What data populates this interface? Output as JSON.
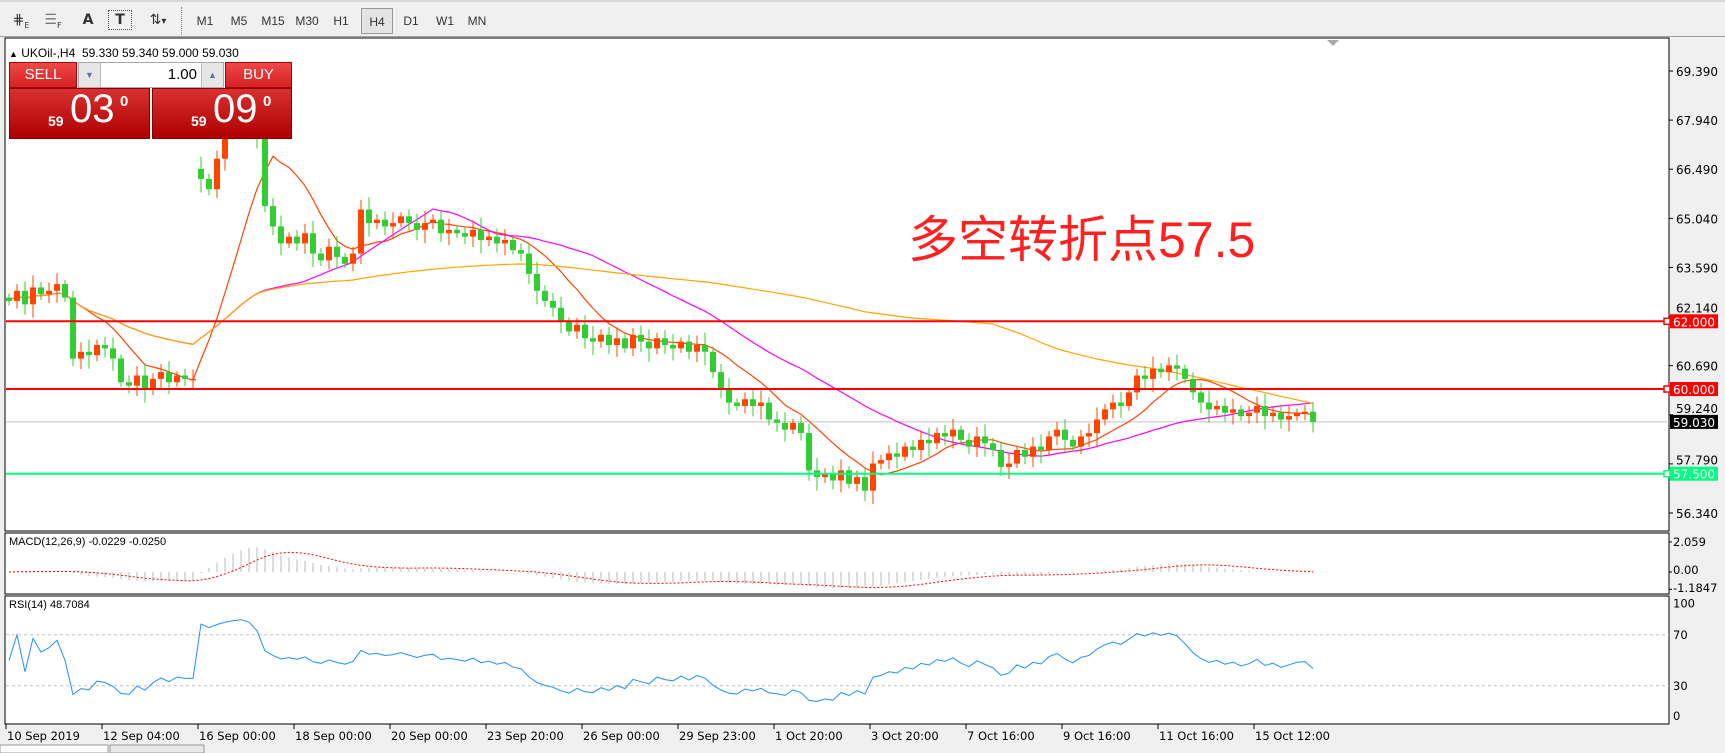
{
  "toolbar": {
    "tools": [
      {
        "icon": "fibonacci-expansion-icon",
        "label": "E"
      },
      {
        "icon": "fibonacci-fan-icon",
        "label": "F"
      },
      {
        "icon": "text-icon",
        "label": "A"
      },
      {
        "icon": "text-label-icon",
        "label": "T"
      },
      {
        "icon": "arrows-dropdown-icon",
        "label": "▾"
      }
    ],
    "timeframes": [
      "M1",
      "M5",
      "M15",
      "M30",
      "H1",
      "H4",
      "D1",
      "W1",
      "MN"
    ],
    "selected": "H4"
  },
  "chart": {
    "symbol": "UKOil-,H4",
    "ohlc": "59.330 59.340 59.000 59.030",
    "annotation": "多空转折点57.5",
    "price_axis": [
      "69.390",
      "67.940",
      "66.490",
      "65.040",
      "63.590",
      "62.140",
      "60.690",
      "59.240",
      "57.790",
      "56.340"
    ],
    "hlines": [
      {
        "label": "62.000",
        "value": 62.0,
        "color": "#ff0000"
      },
      {
        "label": "60.000",
        "value": 60.0,
        "color": "#ff0000"
      },
      {
        "label": "57.500",
        "value": 57.5,
        "color": "#00ff7f"
      }
    ],
    "current": {
      "label": "59.030",
      "value": 59.03
    },
    "dates": [
      "10 Sep 2019",
      "12 Sep 04:00",
      "16 Sep 00:00",
      "18 Sep 00:00",
      "20 Sep 00:00",
      "23 Sep 20:00",
      "26 Sep 00:00",
      "29 Sep 23:00",
      "1 Oct 20:00",
      "3 Oct 20:00",
      "7 Oct 16:00",
      "9 Oct 16:00",
      "11 Oct 16:00",
      "15 Oct 12:00"
    ],
    "bull_color": "#ff4500",
    "bear_color": "#32cd32"
  },
  "trade_panel": {
    "sell": "SELL",
    "buy": "BUY",
    "lots": "1.00",
    "sell_big": "59",
    "sell_main": "03",
    "sell_sup": "0",
    "buy_big": "59",
    "buy_main": "09",
    "buy_sup": "0"
  },
  "macd": {
    "label": "MACD(12,26,9) -0.0229 -0.0250",
    "axis": [
      "2.059",
      "0.00",
      "-1.1847"
    ]
  },
  "rsi": {
    "label": "RSI(14) 48.7084",
    "axis": [
      "100",
      "70",
      "30",
      "0"
    ]
  },
  "chart_data": {
    "type": "candlestick",
    "closes": [
      62.6,
      62.9,
      62.5,
      63.0,
      62.8,
      62.9,
      63.1,
      62.7,
      60.9,
      61.1,
      61.0,
      61.3,
      61.2,
      60.9,
      60.2,
      60.1,
      60.4,
      60.0,
      60.3,
      60.5,
      60.2,
      60.4,
      60.3,
      60.3,
      66.2,
      65.9,
      66.8,
      67.5,
      68.0,
      68.4,
      68.2,
      67.5,
      65.4,
      64.8,
      64.3,
      64.5,
      64.3,
      64.6,
      64.0,
      63.8,
      64.2,
      63.9,
      63.7,
      64.0,
      65.3,
      64.9,
      65.0,
      64.8,
      64.9,
      65.1,
      64.9,
      64.7,
      64.9,
      65.0,
      64.6,
      64.7,
      64.6,
      64.5,
      64.7,
      64.4,
      64.5,
      64.3,
      64.4,
      64.1,
      64.0,
      63.4,
      62.9,
      62.6,
      62.4,
      62.0,
      61.7,
      61.9,
      61.5,
      61.4,
      61.6,
      61.3,
      61.5,
      61.2,
      61.6,
      61.4,
      61.2,
      61.5,
      61.3,
      61.2,
      61.4,
      61.1,
      61.3,
      61.1,
      60.5,
      60.0,
      59.6,
      59.5,
      59.7,
      59.5,
      59.6,
      59.1,
      59.0,
      58.8,
      59.0,
      58.7,
      57.6,
      57.4,
      57.5,
      57.3,
      57.6,
      57.2,
      57.4,
      57.0,
      57.8,
      57.9,
      58.1,
      58.0,
      58.3,
      58.2,
      58.5,
      58.4,
      58.7,
      58.6,
      58.8,
      58.5,
      58.3,
      58.6,
      58.4,
      58.2,
      57.7,
      57.8,
      58.2,
      58.0,
      58.3,
      58.2,
      58.6,
      58.8,
      58.5,
      58.3,
      58.6,
      58.7,
      59.1,
      59.4,
      59.6,
      59.5,
      59.9,
      60.4,
      60.3,
      60.6,
      60.5,
      60.7,
      60.6,
      60.3,
      59.9,
      59.6,
      59.4,
      59.5,
      59.3,
      59.4,
      59.2,
      59.3,
      59.5,
      59.2,
      59.3,
      59.1,
      59.2,
      59.3,
      59.33,
      59.03
    ],
    "ylim": [
      55.8,
      70.1
    ],
    "ma_colors": [
      "#ff4500",
      "#ff00ff",
      "#ffa500"
    ]
  }
}
